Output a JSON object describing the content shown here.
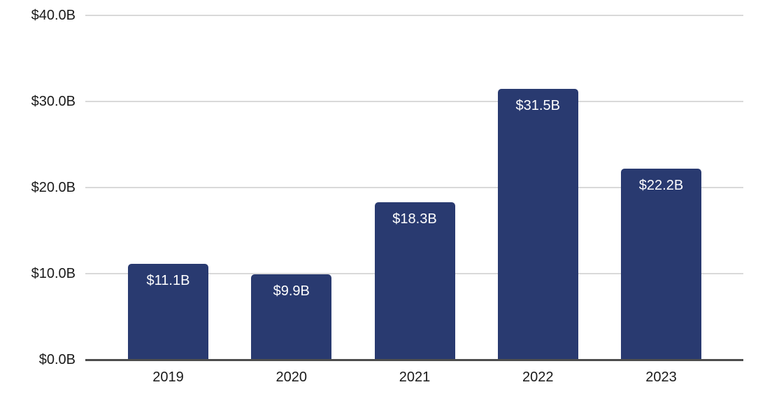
{
  "chart_data": {
    "type": "bar",
    "title": "",
    "xlabel": "",
    "ylabel": "",
    "categories": [
      "2019",
      "2020",
      "2021",
      "2022",
      "2023"
    ],
    "values": [
      11.1,
      9.9,
      18.3,
      31.5,
      22.2
    ],
    "bar_labels": [
      "$11.1B",
      "$9.9B",
      "$18.3B",
      "$31.5B",
      "$22.2B"
    ],
    "y_ticks": [
      {
        "value": 0,
        "label": "$0.0B"
      },
      {
        "value": 10,
        "label": "$10.0B"
      },
      {
        "value": 20,
        "label": "$20.0B"
      },
      {
        "value": 30,
        "label": "$30.0B"
      },
      {
        "value": 40,
        "label": "$40.0B"
      }
    ],
    "ylim": [
      0,
      40
    ],
    "grid": true,
    "legend": false,
    "bar_label_position": "inside-top",
    "colors": {
      "bar": "#293A70",
      "gridline": "#D9D9D9",
      "axis_line": "#4D4D4D",
      "tick_text": "#1A1A1A",
      "bar_label_text": "#FFFFFF",
      "background": "#FFFFFF"
    }
  }
}
